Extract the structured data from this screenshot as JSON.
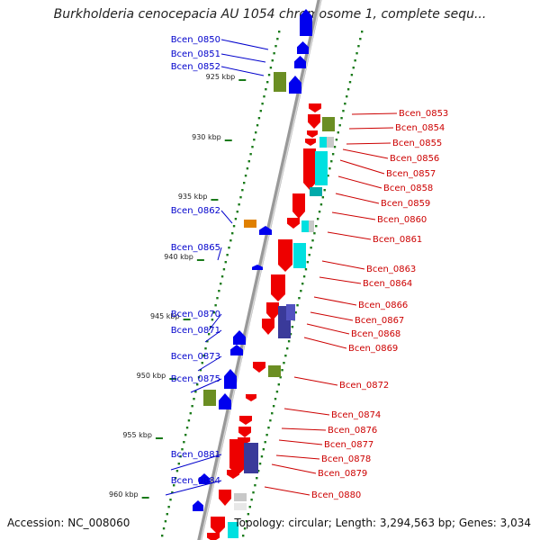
{
  "title": "Burkholderia cenocepacia AU 1054 chromosome 1, complete sequ...",
  "accession_text": "Accession: NC_008060",
  "topology_text": "Topology: circular; Length: 3,294,563 bp; Genes: 3,034",
  "colors": {
    "forward_label": "#0000cc",
    "reverse_label": "#cc0000",
    "backbone": "#999999",
    "tick": "#1a7a1a"
  },
  "kbp_marks": [
    "925 kbp",
    "930 kbp",
    "935 kbp",
    "940 kbp",
    "945 kbp",
    "950 kbp",
    "955 kbp",
    "960 kbp"
  ],
  "forward_genes": [
    "Bcen_0850",
    "Bcen_0851",
    "Bcen_0852",
    "Bcen_0862",
    "Bcen_0865",
    "Bcen_0870",
    "Bcen_0871",
    "Bcen_0873",
    "Bcen_0875",
    "Bcen_0881",
    "Bcen_0884"
  ],
  "reverse_genes": [
    "Bcen_0853",
    "Bcen_0854",
    "Bcen_0855",
    "Bcen_0856",
    "Bcen_0857",
    "Bcen_0858",
    "Bcen_0859",
    "Bcen_0860",
    "Bcen_0861",
    "Bcen_0863",
    "Bcen_0864",
    "Bcen_0866",
    "Bcen_0867",
    "Bcen_0868",
    "Bcen_0869",
    "Bcen_0872",
    "Bcen_0874",
    "Bcen_0876",
    "Bcen_0877",
    "Bcen_0878",
    "Bcen_0879",
    "Bcen_0880"
  ]
}
